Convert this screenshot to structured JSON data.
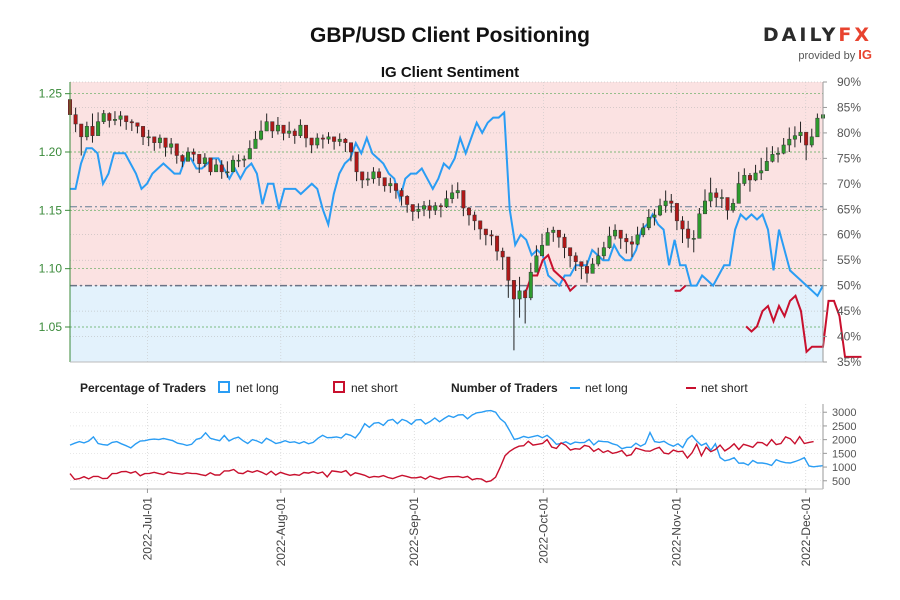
{
  "header": {
    "title": "GBP/USD Client Positioning",
    "subtitle": "IG Client Sentiment",
    "brand_main": "DAILY",
    "brand_accent": "FX",
    "brand_sub": "provided by",
    "brand_ig": "IG"
  },
  "legend": {
    "pct_title": "Percentage of Traders",
    "pct_long": "net long",
    "pct_short": "net short",
    "num_title": "Number of Traders",
    "num_long": "net long",
    "num_short": "net short"
  },
  "colors": {
    "long": "#2a9df4",
    "short": "#c8102e",
    "long_bg": "#e3f2fc",
    "short_bg": "#fbe2e2",
    "candle_up": "#2e9a2e",
    "candle_down": "#b01818",
    "axis_green": "#3a8a3a"
  },
  "chart_data": [
    {
      "type": "candlestick",
      "name": "price",
      "ylim": [
        1.02,
        1.26
      ],
      "y_ticks": [
        "1.25",
        "1.20",
        "1.15",
        "1.10",
        "1.05"
      ],
      "y_tick_values": [
        1.25,
        1.2,
        1.15,
        1.1,
        1.05
      ],
      "x_range": [
        "2022-06-13",
        "2022-12-05"
      ],
      "grid": true,
      "closes": [
        1.232,
        1.224,
        1.213,
        1.222,
        1.214,
        1.226,
        1.233,
        1.227,
        1.228,
        1.231,
        1.226,
        1.225,
        1.222,
        1.213,
        1.213,
        1.208,
        1.212,
        1.204,
        1.207,
        1.197,
        1.192,
        1.2,
        1.198,
        1.19,
        1.195,
        1.183,
        1.189,
        1.183,
        1.183,
        1.193,
        1.193,
        1.194,
        1.203,
        1.211,
        1.218,
        1.226,
        1.218,
        1.223,
        1.216,
        1.218,
        1.214,
        1.223,
        1.212,
        1.206,
        1.212,
        1.211,
        1.213,
        1.209,
        1.211,
        1.208,
        1.2,
        1.183,
        1.176,
        1.177,
        1.183,
        1.178,
        1.171,
        1.173,
        1.167,
        1.162,
        1.155,
        1.149,
        1.151,
        1.154,
        1.15,
        1.154,
        1.153,
        1.16,
        1.165,
        1.167,
        1.152,
        1.146,
        1.141,
        1.134,
        1.129,
        1.128,
        1.115,
        1.11,
        1.09,
        1.074,
        1.081,
        1.075,
        1.097,
        1.111,
        1.12,
        1.131,
        1.133,
        1.127,
        1.118,
        1.111,
        1.106,
        1.102,
        1.096,
        1.104,
        1.111,
        1.118,
        1.128,
        1.133,
        1.126,
        1.123,
        1.121,
        1.129,
        1.135,
        1.144,
        1.146,
        1.154,
        1.158,
        1.156,
        1.141,
        1.134,
        1.126,
        1.126,
        1.147,
        1.158,
        1.165,
        1.161,
        1.161,
        1.15,
        1.156,
        1.173,
        1.18,
        1.176,
        1.182,
        1.184,
        1.192,
        1.198,
        1.199,
        1.206,
        1.211,
        1.214,
        1.217,
        1.206,
        1.213,
        1.229,
        1.232
      ],
      "range_up": [
        1.25,
        1.238,
        1.222,
        1.226,
        1.233,
        1.234,
        1.236,
        1.234,
        1.235,
        1.235,
        1.23,
        1.228,
        1.225,
        1.218,
        1.219,
        1.212,
        1.215,
        1.209,
        1.212,
        1.202,
        1.198,
        1.204,
        1.203,
        1.194,
        1.199,
        1.192,
        1.194,
        1.193,
        1.192,
        1.197,
        1.198,
        1.197,
        1.21,
        1.218,
        1.227,
        1.233,
        1.225,
        1.23,
        1.222,
        1.226,
        1.22,
        1.228,
        1.223,
        1.21,
        1.216,
        1.215,
        1.217,
        1.212,
        1.216,
        1.212,
        1.207,
        1.196,
        1.181,
        1.183,
        1.187,
        1.186,
        1.176,
        1.178,
        1.171,
        1.169,
        1.163,
        1.155,
        1.156,
        1.158,
        1.159,
        1.157,
        1.156,
        1.167,
        1.172,
        1.174,
        1.167,
        1.153,
        1.149,
        1.141,
        1.134,
        1.133,
        1.124,
        1.118,
        1.104,
        1.088,
        1.093,
        1.082,
        1.105,
        1.12,
        1.13,
        1.135,
        1.136,
        1.133,
        1.13,
        1.116,
        1.114,
        1.106,
        1.107,
        1.109,
        1.118,
        1.123,
        1.136,
        1.138,
        1.132,
        1.13,
        1.128,
        1.136,
        1.139,
        1.151,
        1.151,
        1.16,
        1.167,
        1.164,
        1.153,
        1.145,
        1.141,
        1.133,
        1.152,
        1.168,
        1.178,
        1.169,
        1.168,
        1.159,
        1.16,
        1.183,
        1.186,
        1.182,
        1.189,
        1.195,
        1.204,
        1.205,
        1.204,
        1.212,
        1.221,
        1.222,
        1.226,
        1.213,
        1.22,
        1.233,
        1.234
      ],
      "range_down": [
        1.225,
        1.217,
        1.197,
        1.21,
        1.208,
        1.22,
        1.224,
        1.221,
        1.223,
        1.222,
        1.219,
        1.218,
        1.216,
        1.206,
        1.205,
        1.201,
        1.203,
        1.196,
        1.198,
        1.19,
        1.187,
        1.192,
        1.192,
        1.182,
        1.187,
        1.18,
        1.183,
        1.177,
        1.178,
        1.185,
        1.187,
        1.187,
        1.197,
        1.205,
        1.21,
        1.218,
        1.212,
        1.215,
        1.21,
        1.212,
        1.207,
        1.212,
        1.204,
        1.199,
        1.203,
        1.203,
        1.207,
        1.202,
        1.205,
        1.2,
        1.192,
        1.175,
        1.169,
        1.171,
        1.173,
        1.171,
        1.166,
        1.165,
        1.16,
        1.154,
        1.148,
        1.141,
        1.143,
        1.145,
        1.143,
        1.146,
        1.144,
        1.152,
        1.156,
        1.16,
        1.145,
        1.137,
        1.133,
        1.125,
        1.12,
        1.12,
        1.107,
        1.099,
        1.075,
        1.03,
        1.058,
        1.053,
        1.073,
        1.099,
        1.112,
        1.121,
        1.123,
        1.118,
        1.109,
        1.101,
        1.098,
        1.091,
        1.088,
        1.096,
        1.102,
        1.108,
        1.117,
        1.125,
        1.117,
        1.113,
        1.11,
        1.12,
        1.127,
        1.133,
        1.137,
        1.145,
        1.148,
        1.148,
        1.133,
        1.122,
        1.118,
        1.114,
        1.137,
        1.148,
        1.153,
        1.153,
        1.152,
        1.142,
        1.148,
        1.164,
        1.171,
        1.166,
        1.175,
        1.176,
        1.184,
        1.191,
        1.191,
        1.198,
        1.2,
        1.204,
        1.208,
        1.193,
        1.204,
        1.222,
        1.225
      ]
    },
    {
      "type": "line",
      "name": "net long %",
      "ylim": [
        35,
        90
      ],
      "y_ticks": [
        "90%",
        "85%",
        "80%",
        "75%",
        "70%",
        "65%",
        "60%",
        "55%",
        "50%",
        "45%",
        "40%",
        "35%"
      ],
      "y_tick_values": [
        90,
        85,
        80,
        75,
        70,
        65,
        60,
        55,
        50,
        45,
        40,
        35
      ],
      "reference_lines": [
        65.5,
        50
      ],
      "values": [
        69,
        69,
        74,
        77,
        77,
        76,
        70,
        72,
        76,
        76,
        76,
        74,
        72,
        69,
        70,
        72,
        73,
        74,
        73,
        72,
        72,
        75,
        75,
        73,
        73,
        74,
        75,
        75,
        73,
        71,
        73,
        71,
        73,
        74,
        72,
        66,
        70,
        70,
        65,
        69,
        69,
        69,
        68,
        69,
        70,
        69,
        65,
        62,
        68,
        72,
        74,
        75,
        78,
        76,
        79,
        76,
        75,
        74,
        72,
        71,
        67,
        71,
        72,
        72,
        73,
        71,
        69,
        71,
        74,
        73,
        75,
        79,
        76,
        79,
        82,
        80,
        82,
        83,
        83,
        84,
        65,
        58,
        60,
        59,
        56,
        57,
        56,
        52,
        51,
        50,
        52,
        52,
        54,
        54,
        54,
        57,
        56,
        55,
        55,
        58,
        56,
        55,
        55,
        57,
        61,
        62,
        64,
        62,
        61,
        54,
        59,
        54,
        54,
        50,
        50,
        52,
        51,
        50,
        52,
        54,
        54,
        61,
        64,
        63,
        64,
        63,
        64,
        61,
        53,
        61,
        57,
        53,
        52,
        51,
        50,
        49,
        48,
        50
      ]
    },
    {
      "type": "line",
      "name": "net short %",
      "ylim": [
        35,
        90
      ],
      "values": [
        null,
        null,
        null,
        null,
        null,
        null,
        null,
        null,
        null,
        null,
        null,
        null,
        null,
        null,
        null,
        null,
        null,
        null,
        null,
        null,
        null,
        null,
        null,
        null,
        null,
        null,
        null,
        null,
        null,
        null,
        null,
        null,
        null,
        null,
        null,
        null,
        null,
        null,
        null,
        null,
        null,
        null,
        null,
        null,
        null,
        null,
        null,
        null,
        null,
        null,
        null,
        null,
        null,
        null,
        null,
        null,
        null,
        null,
        null,
        null,
        null,
        null,
        null,
        null,
        null,
        null,
        null,
        null,
        null,
        null,
        null,
        null,
        null,
        null,
        null,
        null,
        null,
        null,
        null,
        null,
        null,
        null,
        null,
        49,
        52,
        52,
        55,
        56,
        53,
        52,
        51,
        49,
        50,
        null,
        null,
        null,
        null,
        null,
        null,
        null,
        null,
        null,
        null,
        null,
        null,
        null,
        null,
        null,
        null,
        null,
        49,
        49,
        50,
        null,
        null,
        null,
        null,
        null,
        null,
        null,
        null,
        null,
        null,
        42,
        41,
        42,
        45,
        46,
        43,
        46,
        44,
        47,
        48,
        45,
        37,
        38,
        38,
        38,
        47,
        47,
        44,
        36,
        36,
        36,
        36
      ]
    },
    {
      "type": "line",
      "name": "net long traders",
      "ylim": [
        200,
        3300
      ],
      "y_ticks": [
        "3000",
        "2500",
        "2000",
        "1500",
        "1000",
        "500"
      ],
      "y_tick_values": [
        3000,
        2500,
        2000,
        1500,
        1000,
        500
      ],
      "x_ticks": [
        "2022-Jul-01",
        "2022-Aug-01",
        "2022-Sep-01",
        "2022-Oct-01",
        "2022-Nov-01",
        "2022-Dec-01"
      ],
      "x_tick_dates": [
        "2022-07-01",
        "2022-08-01",
        "2022-09-01",
        "2022-10-01",
        "2022-11-01",
        "2022-12-01"
      ],
      "values": [
        1800,
        1870,
        1930,
        1880,
        1950,
        2100,
        1860,
        1820,
        1800,
        1900,
        1930,
        1850,
        1780,
        1700,
        1840,
        1950,
        1960,
        2000,
        2020,
        2000,
        2040,
        2000,
        1960,
        1870,
        1840,
        1790,
        1830,
        2010,
        2060,
        2250,
        2050,
        2000,
        1960,
        2150,
        1950,
        2040,
        2090,
        1960,
        1860,
        2000,
        1950,
        1870,
        2050,
        1960,
        1860,
        1900,
        1960,
        1900,
        1920,
        1860,
        1930,
        1850,
        1900,
        2050,
        2160,
        2070,
        2080,
        2100,
        2060,
        2210,
        2160,
        2060,
        2270,
        2580,
        2450,
        2600,
        2620,
        2520,
        2700,
        2740,
        2580,
        2740,
        2680,
        2560,
        2720,
        2730,
        2570,
        2660,
        2790,
        2650,
        2770,
        2870,
        2810,
        2900,
        2910,
        2760,
        2900,
        2980,
        3000,
        3050,
        3060,
        3000,
        2760,
        2620,
        2330,
        2010,
        2050,
        2120,
        2070,
        2110,
        2150,
        2070,
        2160,
        2020,
        1830,
        1860,
        1920,
        1830,
        1910,
        1890,
        1900,
        2010,
        1810,
        1950,
        1930,
        1920,
        1850,
        1800,
        1670,
        1720,
        1720,
        1870,
        1760,
        1850,
        2260,
        1930,
        1900,
        1940,
        1830,
        1760,
        1850,
        1710,
        2020,
        2150,
        1950,
        1790,
        1870,
        1610,
        1850,
        1350,
        1230,
        1270,
        1340,
        1140,
        1150,
        1070,
        1240,
        1150,
        1150,
        1120,
        1060,
        1270,
        1200,
        1160,
        1150,
        1200,
        1260,
        1340,
        1040,
        1010,
        1030,
        1050
      ]
    },
    {
      "type": "line",
      "name": "net short traders",
      "ylim": [
        200,
        3300
      ],
      "values": [
        760,
        550,
        580,
        650,
        570,
        660,
        660,
        580,
        590,
        760,
        770,
        830,
        840,
        780,
        840,
        680,
        760,
        770,
        810,
        760,
        730,
        820,
        780,
        760,
        740,
        790,
        770,
        760,
        720,
        690,
        790,
        710,
        710,
        860,
        860,
        910,
        780,
        760,
        860,
        810,
        870,
        810,
        720,
        850,
        710,
        810,
        750,
        700,
        730,
        700,
        800,
        780,
        830,
        770,
        820,
        640,
        860,
        840,
        810,
        870,
        690,
        790,
        750,
        700,
        620,
        660,
        640,
        690,
        620,
        580,
        640,
        700,
        660,
        610,
        610,
        640,
        560,
        670,
        610,
        560,
        620,
        650,
        650,
        660,
        620,
        660,
        540,
        580,
        560,
        460,
        500,
        630,
        1000,
        1410,
        1570,
        1680,
        1760,
        1780,
        1940,
        1800,
        1830,
        1860,
        2000,
        1730,
        1680,
        1880,
        1790,
        1620,
        1670,
        1650,
        1790,
        1750,
        1570,
        1670,
        1530,
        1600,
        1500,
        1540,
        1600,
        1410,
        1450,
        1690,
        1640,
        1590,
        1580,
        1660,
        1720,
        1510,
        1480,
        1620,
        1560,
        1580,
        1330,
        1520,
        1840,
        1410,
        1720,
        1560,
        1640,
        1800,
        1590,
        1700,
        1850,
        1640,
        1830,
        1780,
        1720,
        1900,
        1890,
        1780,
        2000,
        1820,
        1860,
        2100,
        2030,
        1850,
        2110,
        1860,
        1900,
        1930
      ]
    }
  ]
}
